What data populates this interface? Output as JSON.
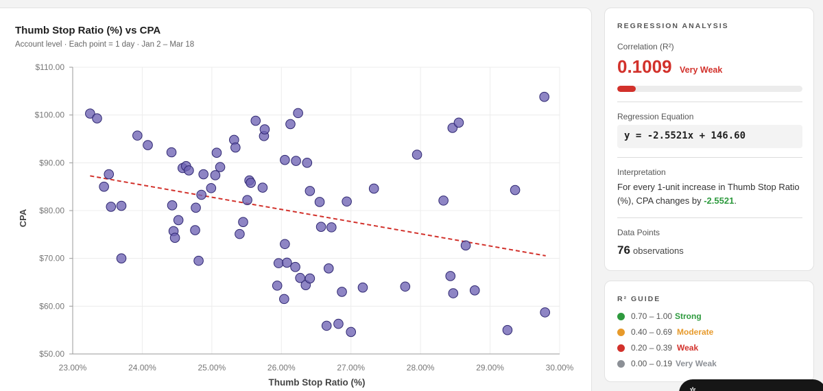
{
  "chart_card": {
    "title": "Thumb Stop Ratio (%) vs CPA",
    "subtitle": "Account level · Each point = 1 day · Jan 2 – Mar 18"
  },
  "chart_data": {
    "type": "scatter",
    "title": "Thumb Stop Ratio (%) vs CPA",
    "xlabel": "Thumb Stop Ratio (%)",
    "ylabel": "CPA",
    "xlim": [
      23,
      30
    ],
    "ylim": [
      50,
      110
    ],
    "x_ticks": [
      23,
      24,
      25,
      26,
      27,
      28,
      29,
      30
    ],
    "x_tick_labels": [
      "23.00%",
      "24.00%",
      "25.00%",
      "26.00%",
      "27.00%",
      "28.00%",
      "29.00%",
      "30.00%"
    ],
    "y_ticks": [
      50,
      60,
      70,
      80,
      90,
      100,
      110
    ],
    "y_tick_labels": [
      "$50.00",
      "$60.00",
      "$70.00",
      "$80.00",
      "$90.00",
      "$100.00",
      "$110.00"
    ],
    "grid": true,
    "colors": {
      "point": "#6e63b4",
      "point_stroke": "#2d2670",
      "trend": "#d2312b"
    },
    "trendline": {
      "slope": -2.5521,
      "intercept": 146.6,
      "x_range": [
        23.25,
        29.8
      ]
    },
    "points": [
      [
        23.25,
        100.3
      ],
      [
        23.35,
        99.3
      ],
      [
        23.45,
        85.0
      ],
      [
        23.52,
        87.6
      ],
      [
        23.55,
        80.8
      ],
      [
        23.7,
        81.0
      ],
      [
        23.7,
        70.0
      ],
      [
        23.93,
        95.7
      ],
      [
        24.08,
        93.7
      ],
      [
        24.42,
        92.2
      ],
      [
        24.43,
        81.1
      ],
      [
        24.45,
        75.7
      ],
      [
        24.47,
        74.3
      ],
      [
        24.52,
        78.0
      ],
      [
        24.58,
        88.9
      ],
      [
        24.63,
        89.3
      ],
      [
        24.67,
        88.4
      ],
      [
        24.76,
        75.9
      ],
      [
        24.77,
        80.6
      ],
      [
        24.81,
        69.5
      ],
      [
        24.85,
        83.3
      ],
      [
        24.88,
        87.6
      ],
      [
        24.99,
        84.7
      ],
      [
        25.05,
        87.4
      ],
      [
        25.07,
        92.1
      ],
      [
        25.12,
        89.1
      ],
      [
        25.32,
        94.8
      ],
      [
        25.34,
        93.2
      ],
      [
        25.4,
        75.1
      ],
      [
        25.45,
        77.6
      ],
      [
        25.51,
        82.2
      ],
      [
        25.54,
        86.3
      ],
      [
        25.56,
        85.8
      ],
      [
        25.63,
        98.8
      ],
      [
        25.73,
        84.8
      ],
      [
        25.75,
        95.6
      ],
      [
        25.76,
        97.0
      ],
      [
        25.94,
        64.3
      ],
      [
        25.96,
        69.0
      ],
      [
        26.04,
        61.5
      ],
      [
        26.05,
        90.6
      ],
      [
        26.05,
        73.0
      ],
      [
        26.08,
        69.1
      ],
      [
        26.13,
        98.1
      ],
      [
        26.2,
        68.2
      ],
      [
        26.21,
        90.4
      ],
      [
        26.24,
        100.4
      ],
      [
        26.27,
        65.9
      ],
      [
        26.35,
        64.4
      ],
      [
        26.37,
        90.0
      ],
      [
        26.41,
        65.8
      ],
      [
        26.41,
        84.1
      ],
      [
        26.55,
        81.8
      ],
      [
        26.57,
        76.6
      ],
      [
        26.65,
        55.9
      ],
      [
        26.68,
        67.9
      ],
      [
        26.72,
        76.5
      ],
      [
        26.82,
        56.3
      ],
      [
        26.87,
        63.0
      ],
      [
        26.94,
        81.9
      ],
      [
        27.0,
        54.6
      ],
      [
        27.17,
        63.9
      ],
      [
        27.33,
        84.6
      ],
      [
        27.78,
        64.1
      ],
      [
        27.95,
        91.7
      ],
      [
        28.33,
        82.1
      ],
      [
        28.43,
        66.3
      ],
      [
        28.46,
        97.3
      ],
      [
        28.47,
        62.7
      ],
      [
        28.55,
        98.4
      ],
      [
        28.65,
        72.7
      ],
      [
        28.78,
        63.3
      ],
      [
        29.25,
        55.0
      ],
      [
        29.36,
        84.3
      ],
      [
        29.78,
        103.8
      ],
      [
        29.79,
        58.7
      ]
    ]
  },
  "regression": {
    "section_title": "REGRESSION ANALYSIS",
    "correlation_label": "Correlation (R²)",
    "r2_value": "0.1009",
    "r2_numeric": 0.1009,
    "strength": "Very Weak",
    "equation_label": "Regression Equation",
    "equation": "y = -2.5521x + 146.60",
    "interpretation_label": "Interpretation",
    "interpretation_text": "For every 1-unit increase in Thumb Stop Ratio (%), CPA changes by ",
    "interpretation_coef": "-2.5521",
    "interpretation_end": ".",
    "data_points_label": "Data Points",
    "data_points_count": "76",
    "data_points_unit": "observations"
  },
  "guide": {
    "section_title": "R² GUIDE",
    "items": [
      {
        "range": "0.70 – 1.00",
        "name": "Strong",
        "color": "#2e9a3e"
      },
      {
        "range": "0.40 – 0.69",
        "name": "Moderate",
        "color": "#e79a2b"
      },
      {
        "range": "0.20 – 0.39",
        "name": "Weak",
        "color": "#d2312b"
      },
      {
        "range": "0.00 – 0.19",
        "name": "Very Weak",
        "color": "#8c9096"
      }
    ]
  }
}
